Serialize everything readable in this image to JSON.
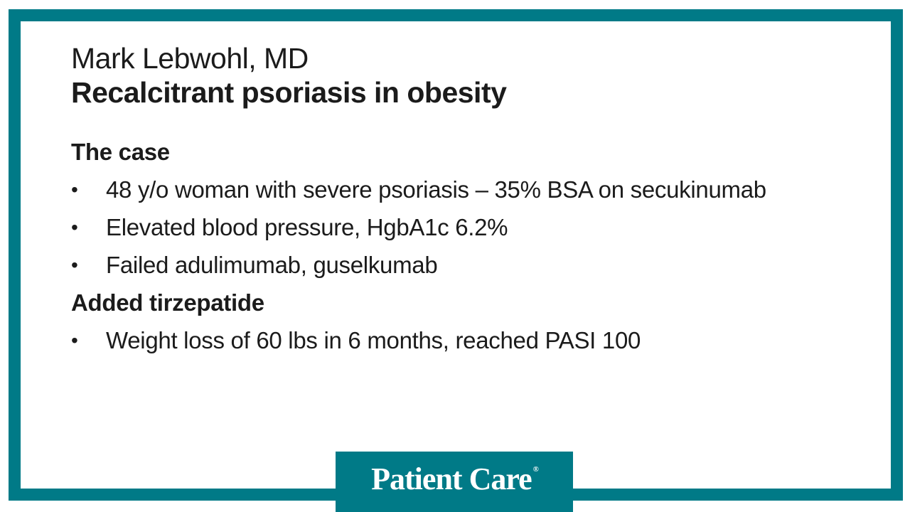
{
  "slide": {
    "speaker": "Mark Lebwohl, MD",
    "title": "Recalcitrant psoriasis in obesity",
    "bullet_glyph": "•",
    "sections": [
      {
        "heading": "The case",
        "bullets": [
          "48 y/o woman with severe psoriasis – 35% BSA on secukinumab",
          "Elevated blood pressure, HgbA1c 6.2%",
          "Failed adulimumab, guselkumab"
        ]
      },
      {
        "heading": "Added tirzepatide",
        "bullets": [
          "Weight loss of 60 lbs in 6 months, reached PASI 100"
        ]
      }
    ],
    "logo": {
      "text": "Patient Care",
      "reg_mark": "®"
    },
    "colors": {
      "teal": "#007A87",
      "text": "#1B1B1B",
      "background": "#FFFFFF"
    }
  }
}
